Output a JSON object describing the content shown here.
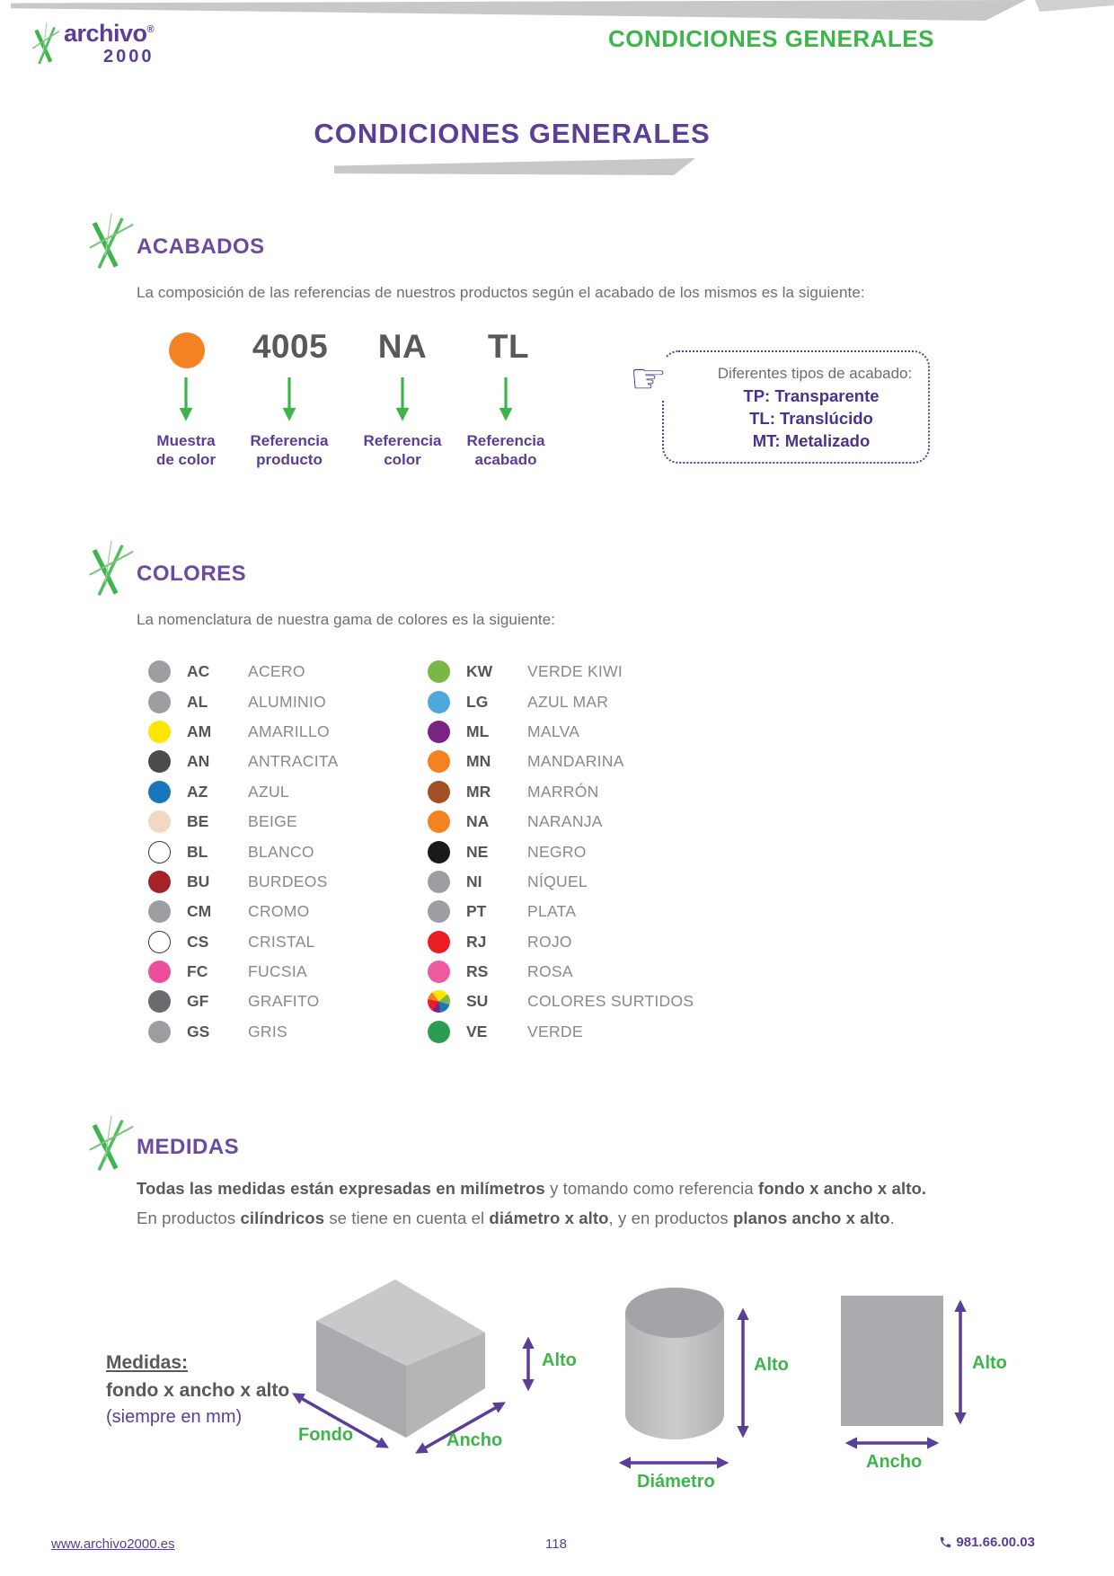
{
  "header": {
    "brand": "archivo",
    "brand_reg": "®",
    "brand_year": "2000",
    "page_heading": "CONDICIONES GENERALES"
  },
  "title": "CONDICIONES GENERALES",
  "acabados": {
    "heading": "ACABADOS",
    "intro": "La composición de las referencias de nuestros productos según el acabado de los mismos es la siguiente:",
    "example": {
      "swatch_color": "#F58220",
      "product_ref": "4005",
      "color_ref": "NA",
      "finish_ref": "TL",
      "labels": [
        {
          "l1": "Muestra",
          "l2": "de color"
        },
        {
          "l1": "Referencia",
          "l2": "producto"
        },
        {
          "l1": "Referencia",
          "l2": "color"
        },
        {
          "l1": "Referencia",
          "l2": "acabado"
        }
      ]
    },
    "finish_box": {
      "title": "Diferentes tipos de acabado:",
      "items": [
        "TP: Transparente",
        "TL: Translúcido",
        "MT: Metalizado"
      ]
    }
  },
  "colores": {
    "heading": "COLORES",
    "intro": "La nomenclatura de nuestra gama de colores es la siguiente:",
    "left": [
      {
        "code": "AC",
        "name": "ACERO",
        "hex": "#9C9EA1"
      },
      {
        "code": "AL",
        "name": "ALUMINIO",
        "hex": "#9C9EA1"
      },
      {
        "code": "AM",
        "name": "AMARILLO",
        "hex": "#FFE500"
      },
      {
        "code": "AN",
        "name": "ANTRACITA",
        "hex": "#4A4B4D"
      },
      {
        "code": "AZ",
        "name": "AZUL",
        "hex": "#1B75BB"
      },
      {
        "code": "BE",
        "name": "BEIGE",
        "hex": "#F2D8C2"
      },
      {
        "code": "BL",
        "name": "BLANCO",
        "hex": "#FFFFFF",
        "ring": true
      },
      {
        "code": "BU",
        "name": "BURDEOS",
        "hex": "#A62226"
      },
      {
        "code": "CM",
        "name": "CROMO",
        "hex": "#9C9EA1"
      },
      {
        "code": "CS",
        "name": "CRISTAL",
        "hex": "#FFFFFF",
        "ring": true
      },
      {
        "code": "FC",
        "name": "FUCSIA",
        "hex": "#EC4E9B"
      },
      {
        "code": "GF",
        "name": "GRAFITO",
        "hex": "#6A6B6E"
      },
      {
        "code": "GS",
        "name": "GRIS",
        "hex": "#9C9EA1"
      }
    ],
    "right": [
      {
        "code": "KW",
        "name": "VERDE KIWI",
        "hex": "#7AB648"
      },
      {
        "code": "LG",
        "name": "AZUL MAR",
        "hex": "#4FA8DC"
      },
      {
        "code": "ML",
        "name": "MALVA",
        "hex": "#7B2382"
      },
      {
        "code": "MN",
        "name": "MANDARINA",
        "hex": "#F58220"
      },
      {
        "code": "MR",
        "name": "MARRÓN",
        "hex": "#A35124"
      },
      {
        "code": "NA",
        "name": "NARANJA",
        "hex": "#F58220"
      },
      {
        "code": "NE",
        "name": "NEGRO",
        "hex": "#1A1A1C"
      },
      {
        "code": "NI",
        "name": "NÍQUEL",
        "hex": "#9C9EA1"
      },
      {
        "code": "PT",
        "name": "PLATA",
        "hex": "#9C9EA1"
      },
      {
        "code": "RJ",
        "name": "ROJO",
        "hex": "#EC1C24"
      },
      {
        "code": "RS",
        "name": "ROSA",
        "hex": "#EE5BA0"
      },
      {
        "code": "SU",
        "name": "COLORES SURTIDOS",
        "multi": true
      },
      {
        "code": "VE",
        "name": "VERDE",
        "hex": "#2E9B55"
      }
    ]
  },
  "medidas": {
    "heading": "MEDIDAS",
    "line1": [
      "Todas las medidas están expresadas en milímetros",
      " y tomando como referencia ",
      "fondo x ancho x alto."
    ],
    "line2": [
      "En productos ",
      "cilíndricos",
      " se tiene en cuenta el ",
      "diámetro x alto",
      ", y en productos ",
      "planos ancho x alto",
      "."
    ],
    "legend_title": "Medidas:",
    "legend_formula": "fondo x ancho x alto",
    "legend_note": "(siempre en mm)",
    "label_fondo": "Fondo",
    "label_ancho": "Ancho",
    "label_alto": "Alto",
    "label_diametro": "Diámetro"
  },
  "footer": {
    "website": "www.archivo2000.es",
    "page_number": "118",
    "phone": "981.66.00.03"
  },
  "theme": {
    "purple": "#5B3E97",
    "purple_dark": "#4B3192",
    "heading_purple": "#6A4AA3",
    "green": "#3DB54A",
    "gray_text": "#6D6E71",
    "gray_dark": "#58595B",
    "gray_name": "#87898C",
    "swoosh": "#C7C8CA"
  }
}
